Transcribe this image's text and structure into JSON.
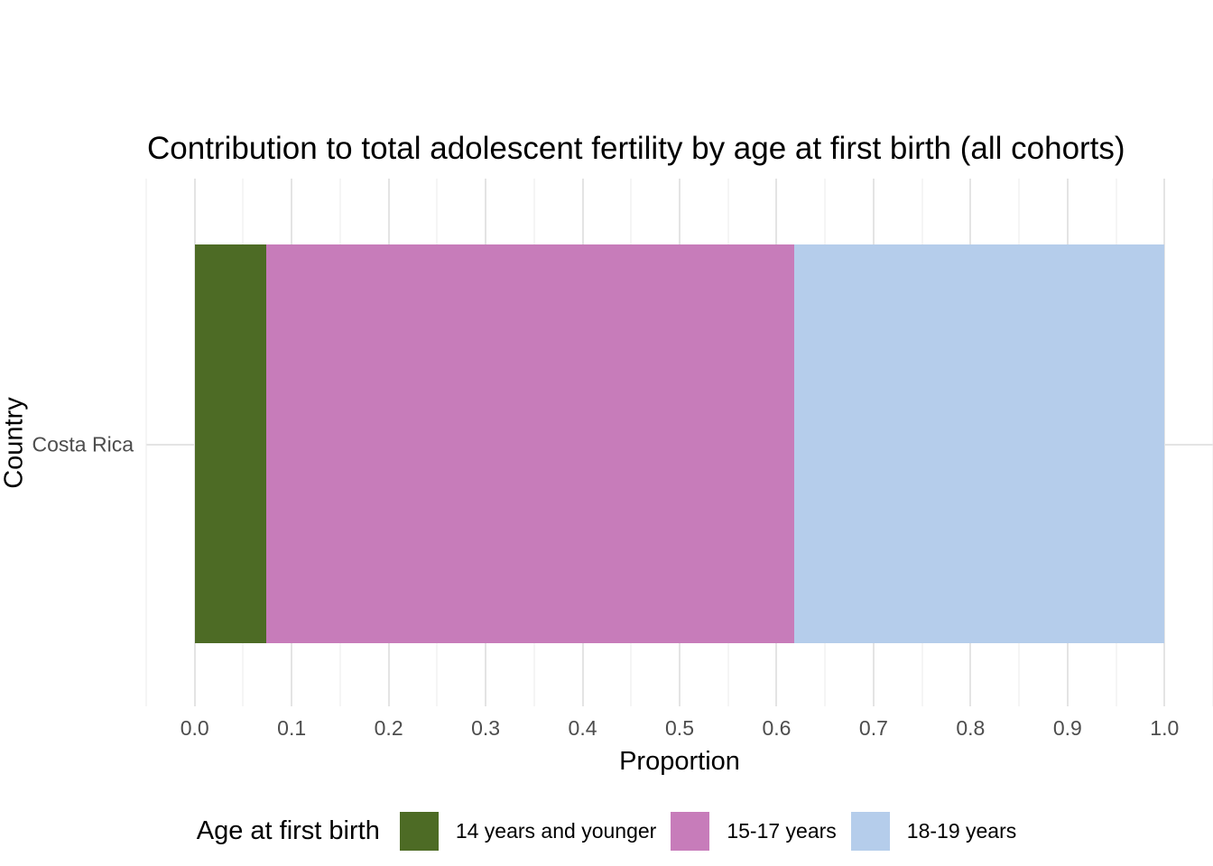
{
  "title": "Contribution to total adolescent fertility by age at first birth (all cohorts)",
  "axes": {
    "x": {
      "title": "Proportion",
      "ticks": [
        "0.0",
        "0.1",
        "0.2",
        "0.3",
        "0.4",
        "0.5",
        "0.6",
        "0.7",
        "0.8",
        "0.9",
        "1.0"
      ]
    },
    "y": {
      "title": "Country",
      "categories": [
        "Costa Rica"
      ]
    }
  },
  "legend": {
    "title": "Age at first birth",
    "position": "bottom",
    "items": [
      {
        "label": "14 years and younger",
        "color": "#4d6b25"
      },
      {
        "label": "15-17 years",
        "color": "#c77cba"
      },
      {
        "label": "18-19 years",
        "color": "#b5cdeb"
      }
    ]
  },
  "chart_data": {
    "type": "bar",
    "orientation": "horizontal",
    "stacked": true,
    "title": "Contribution to total adolescent fertility by age at first birth (all cohorts)",
    "xlabel": "Proportion",
    "ylabel": "Country",
    "categories": [
      "Costa Rica"
    ],
    "series": [
      {
        "name": "14 years and younger",
        "values": [
          0.074
        ],
        "color": "#4d6b25"
      },
      {
        "name": "15-17 years",
        "values": [
          0.544
        ],
        "color": "#c77cba"
      },
      {
        "name": "18-19 years",
        "values": [
          0.382
        ],
        "color": "#b5cdeb"
      }
    ],
    "xlim": [
      -0.05,
      1.05
    ],
    "x_ticks": [
      0.0,
      0.1,
      0.2,
      0.3,
      0.4,
      0.5,
      0.6,
      0.7,
      0.8,
      0.9,
      1.0
    ],
    "grid": true,
    "grid_minor_step": 0.05,
    "legend_position": "bottom"
  },
  "colors": {
    "background": "#ffffff",
    "grid_major": "#e4e4e4",
    "grid_minor": "#ebebeb",
    "tick_text": "#4d4d4d",
    "text": "#000000"
  }
}
